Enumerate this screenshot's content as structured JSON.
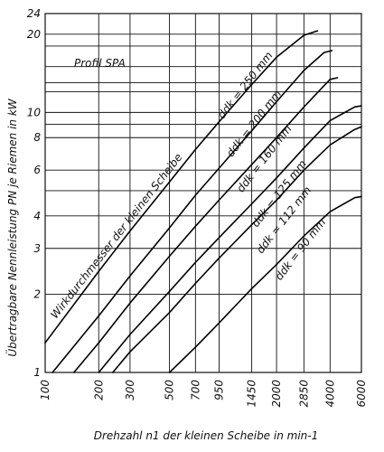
{
  "chart_data": {
    "type": "line",
    "x_scale": "log",
    "y_scale": "log",
    "xlim": [
      100,
      6000
    ],
    "ylim": [
      1,
      24
    ],
    "x_ticks": [
      "100",
      "200",
      "300",
      "500",
      "700",
      "950",
      "1450",
      "2000",
      "2850",
      "4000",
      "6000"
    ],
    "x_tick_values": [
      100,
      200,
      300,
      500,
      700,
      950,
      1450,
      2000,
      2850,
      4000,
      6000
    ],
    "y_ticks": [
      "1",
      "2",
      "3",
      "4",
      "6",
      "8",
      "10",
      "20",
      "24"
    ],
    "y_tick_values": [
      1,
      2,
      3,
      4,
      6,
      8,
      10,
      20,
      24
    ],
    "y_gridlines": [
      1,
      2,
      3,
      4,
      5,
      6,
      8,
      9,
      10,
      12,
      13,
      15,
      18,
      20,
      24
    ],
    "grid": true,
    "xlabel": "Drehzahl n1 der kleinen Scheibe in min-1",
    "ylabel": "Übertragbare Nennleistung PN je Riemen in kW",
    "annotations": [
      {
        "text": "Profil SPA"
      },
      {
        "text": "Wirkdurchmesser der kleinen Scheibe"
      }
    ],
    "series": [
      {
        "name": "ddk = 250 mm",
        "x": [
          100,
          200,
          300,
          500,
          700,
          950,
          1450,
          2000,
          2850,
          3400
        ],
        "y": [
          1.3,
          2.45,
          3.5,
          5.4,
          7.2,
          9.2,
          12.8,
          16.3,
          19.8,
          20.6
        ]
      },
      {
        "name": "ddk = 200 mm",
        "x": [
          110,
          200,
          300,
          500,
          700,
          950,
          1450,
          2000,
          2850,
          3700,
          4100
        ],
        "y": [
          1.0,
          1.65,
          2.35,
          3.6,
          4.8,
          6.1,
          8.5,
          11.0,
          14.5,
          17.0,
          17.3
        ]
      },
      {
        "name": "ddk = 160 mm",
        "x": [
          145,
          200,
          300,
          500,
          700,
          950,
          1450,
          2000,
          2850,
          4000,
          4400
        ],
        "y": [
          1.0,
          1.3,
          1.85,
          2.8,
          3.65,
          4.6,
          6.3,
          8.0,
          10.5,
          13.4,
          13.6
        ]
      },
      {
        "name": "ddk = 125 mm",
        "x": [
          200,
          300,
          500,
          700,
          950,
          1450,
          2000,
          2850,
          4000,
          5500,
          6000
        ],
        "y": [
          1.0,
          1.4,
          2.05,
          2.65,
          3.3,
          4.45,
          5.6,
          7.3,
          9.3,
          10.5,
          10.6
        ]
      },
      {
        "name": "ddk = 112 mm",
        "x": [
          240,
          300,
          500,
          700,
          950,
          1450,
          2000,
          2850,
          4000,
          5500,
          6000
        ],
        "y": [
          1.0,
          1.2,
          1.7,
          2.2,
          2.75,
          3.7,
          4.6,
          6.0,
          7.5,
          8.6,
          8.8
        ]
      },
      {
        "name": "ddk = 90 mm",
        "x": [
          500,
          700,
          950,
          1450,
          2000,
          2850,
          4000,
          5500,
          6000
        ],
        "y": [
          1.0,
          1.25,
          1.55,
          2.1,
          2.6,
          3.35,
          4.15,
          4.7,
          4.75
        ]
      }
    ]
  }
}
